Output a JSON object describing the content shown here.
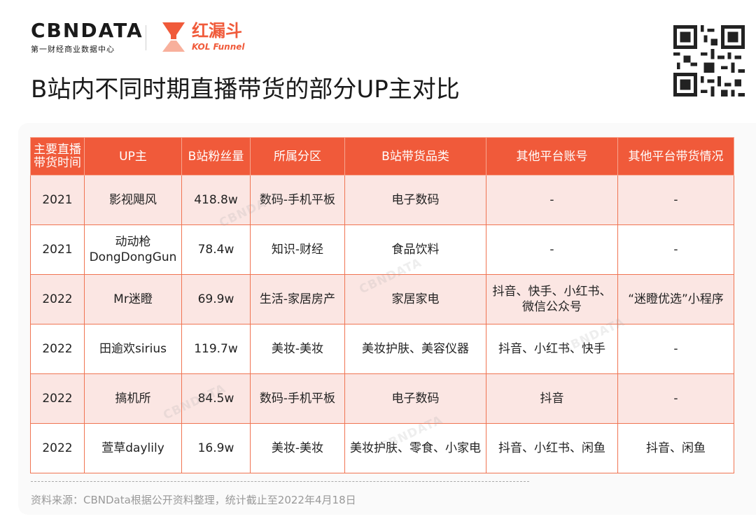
{
  "header": {
    "cbn_logo_text": "CBNDATA",
    "cbn_logo_sub": "第一财经商业数据中心",
    "kol_logo_cn": "红漏斗",
    "kol_logo_en": "KOL Funnel",
    "title": "B站内不同时期直播带货的部分UP主对比"
  },
  "table": {
    "headers": [
      "主要直播带货时间",
      "UP主",
      "B站粉丝量",
      "所属分区",
      "B站带货品类",
      "其他平台账号",
      "其他平台带货情况"
    ],
    "rows": [
      [
        "2021",
        "影视飓风",
        "418.8w",
        "数码-手机平板",
        "电子数码",
        "-",
        "-"
      ],
      [
        "2021",
        "动动枪 DongDongGun",
        "78.4w",
        "知识-财经",
        "食品饮料",
        "-",
        "-"
      ],
      [
        "2022",
        "Mr迷瞪",
        "69.9w",
        "生活-家居房产",
        "家居家电",
        "抖音、快手、小红书、微信公众号",
        "“迷瞪优选”小程序"
      ],
      [
        "2022",
        "田逾欢sirius",
        "119.7w",
        "美妆-美妆",
        "美妆护肤、美容仪器",
        "抖音、小红书、快手",
        "-"
      ],
      [
        "2022",
        "搞机所",
        "84.5w",
        "数码-手机平板",
        "电子数码",
        "抖音",
        "-"
      ],
      [
        "2022",
        "萱草daylily",
        "16.9w",
        "美妆-美妆",
        "美妆护肤、零食、小家电",
        "抖音、小红书、闲鱼",
        "抖音、闲鱼"
      ]
    ]
  },
  "footer": {
    "source": "资料来源：CBNData根据公开资料整理，统计截止至2022年4月18日"
  },
  "colors": {
    "accent": "#f05a3a",
    "row_pink": "#fbe6e3",
    "row_white": "#ffffff",
    "text": "#222222",
    "source_text": "#999999"
  }
}
